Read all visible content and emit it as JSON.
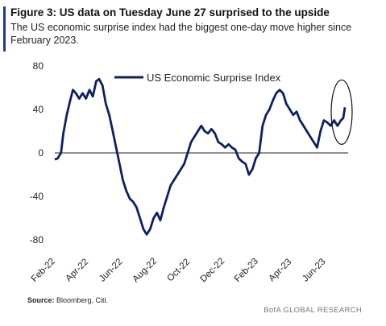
{
  "header": {
    "title": "Figure 3: US data on Tuesday June 27 surprised to the upside",
    "subtitle": "The US economic surprise index had the biggest one-day move higher since February 2023."
  },
  "footer": {
    "source_label": "Source:",
    "source_text": "Bloomberg, Citi.",
    "brand": "BofA GLOBAL RESEARCH"
  },
  "colors": {
    "line": "#0d1f66",
    "accent": "#1f3a93"
  },
  "chart_data": {
    "type": "line",
    "title": "",
    "xlabel": "",
    "ylabel": "",
    "ylim": [
      -80,
      80
    ],
    "yticks": [
      -80,
      -40,
      0,
      40,
      80
    ],
    "x_tick_labels": [
      "Feb-22",
      "Apr-22",
      "Jun-22",
      "Aug-22",
      "Oct-22",
      "Dec-22",
      "Feb-23",
      "Apr-23",
      "Jun-23"
    ],
    "legend_position": "top",
    "annotation": "ellipse highlighting latest jump",
    "series": [
      {
        "name": "US Economic Surprise Index",
        "color": "#0d1f66",
        "points": [
          [
            "2022-02-01",
            -6
          ],
          [
            "2022-02-06",
            -5
          ],
          [
            "2022-02-12",
            0
          ],
          [
            "2022-02-16",
            18
          ],
          [
            "2022-02-22",
            35
          ],
          [
            "2022-02-28",
            48
          ],
          [
            "2022-03-05",
            58
          ],
          [
            "2022-03-10",
            55
          ],
          [
            "2022-03-16",
            50
          ],
          [
            "2022-03-22",
            55
          ],
          [
            "2022-03-28",
            50
          ],
          [
            "2022-04-03",
            58
          ],
          [
            "2022-04-09",
            52
          ],
          [
            "2022-04-15",
            66
          ],
          [
            "2022-04-20",
            68
          ],
          [
            "2022-04-26",
            62
          ],
          [
            "2022-05-02",
            45
          ],
          [
            "2022-05-08",
            35
          ],
          [
            "2022-05-14",
            20
          ],
          [
            "2022-05-20",
            5
          ],
          [
            "2022-05-26",
            -10
          ],
          [
            "2022-06-01",
            -25
          ],
          [
            "2022-06-07",
            -35
          ],
          [
            "2022-06-13",
            -42
          ],
          [
            "2022-06-19",
            -45
          ],
          [
            "2022-06-25",
            -50
          ],
          [
            "2022-07-01",
            -60
          ],
          [
            "2022-07-07",
            -70
          ],
          [
            "2022-07-13",
            -75
          ],
          [
            "2022-07-19",
            -70
          ],
          [
            "2022-07-25",
            -60
          ],
          [
            "2022-07-31",
            -55
          ],
          [
            "2022-08-06",
            -62
          ],
          [
            "2022-08-12",
            -50
          ],
          [
            "2022-08-18",
            -40
          ],
          [
            "2022-08-24",
            -30
          ],
          [
            "2022-08-30",
            -25
          ],
          [
            "2022-09-05",
            -20
          ],
          [
            "2022-09-11",
            -15
          ],
          [
            "2022-09-17",
            -10
          ],
          [
            "2022-09-23",
            0
          ],
          [
            "2022-09-29",
            10
          ],
          [
            "2022-10-05",
            15
          ],
          [
            "2022-10-11",
            20
          ],
          [
            "2022-10-17",
            25
          ],
          [
            "2022-10-23",
            20
          ],
          [
            "2022-10-29",
            18
          ],
          [
            "2022-11-04",
            22
          ],
          [
            "2022-11-10",
            18
          ],
          [
            "2022-11-16",
            10
          ],
          [
            "2022-11-22",
            8
          ],
          [
            "2022-11-28",
            5
          ],
          [
            "2022-12-04",
            8
          ],
          [
            "2022-12-10",
            5
          ],
          [
            "2022-12-16",
            3
          ],
          [
            "2022-12-22",
            -5
          ],
          [
            "2022-12-28",
            -8
          ],
          [
            "2023-01-03",
            -10
          ],
          [
            "2023-01-09",
            -20
          ],
          [
            "2023-01-15",
            -15
          ],
          [
            "2023-01-21",
            -5
          ],
          [
            "2023-01-27",
            0
          ],
          [
            "2023-02-02",
            25
          ],
          [
            "2023-02-08",
            35
          ],
          [
            "2023-02-14",
            40
          ],
          [
            "2023-02-20",
            48
          ],
          [
            "2023-02-26",
            55
          ],
          [
            "2023-03-04",
            58
          ],
          [
            "2023-03-10",
            55
          ],
          [
            "2023-03-16",
            45
          ],
          [
            "2023-03-22",
            40
          ],
          [
            "2023-03-28",
            35
          ],
          [
            "2023-04-03",
            38
          ],
          [
            "2023-04-09",
            30
          ],
          [
            "2023-04-15",
            25
          ],
          [
            "2023-04-21",
            20
          ],
          [
            "2023-04-27",
            15
          ],
          [
            "2023-05-03",
            10
          ],
          [
            "2023-05-09",
            5
          ],
          [
            "2023-05-15",
            20
          ],
          [
            "2023-05-21",
            30
          ],
          [
            "2023-05-27",
            28
          ],
          [
            "2023-06-02",
            25
          ],
          [
            "2023-06-08",
            30
          ],
          [
            "2023-06-14",
            25
          ],
          [
            "2023-06-20",
            30
          ],
          [
            "2023-06-24",
            32
          ],
          [
            "2023-06-27",
            42
          ]
        ]
      }
    ]
  }
}
